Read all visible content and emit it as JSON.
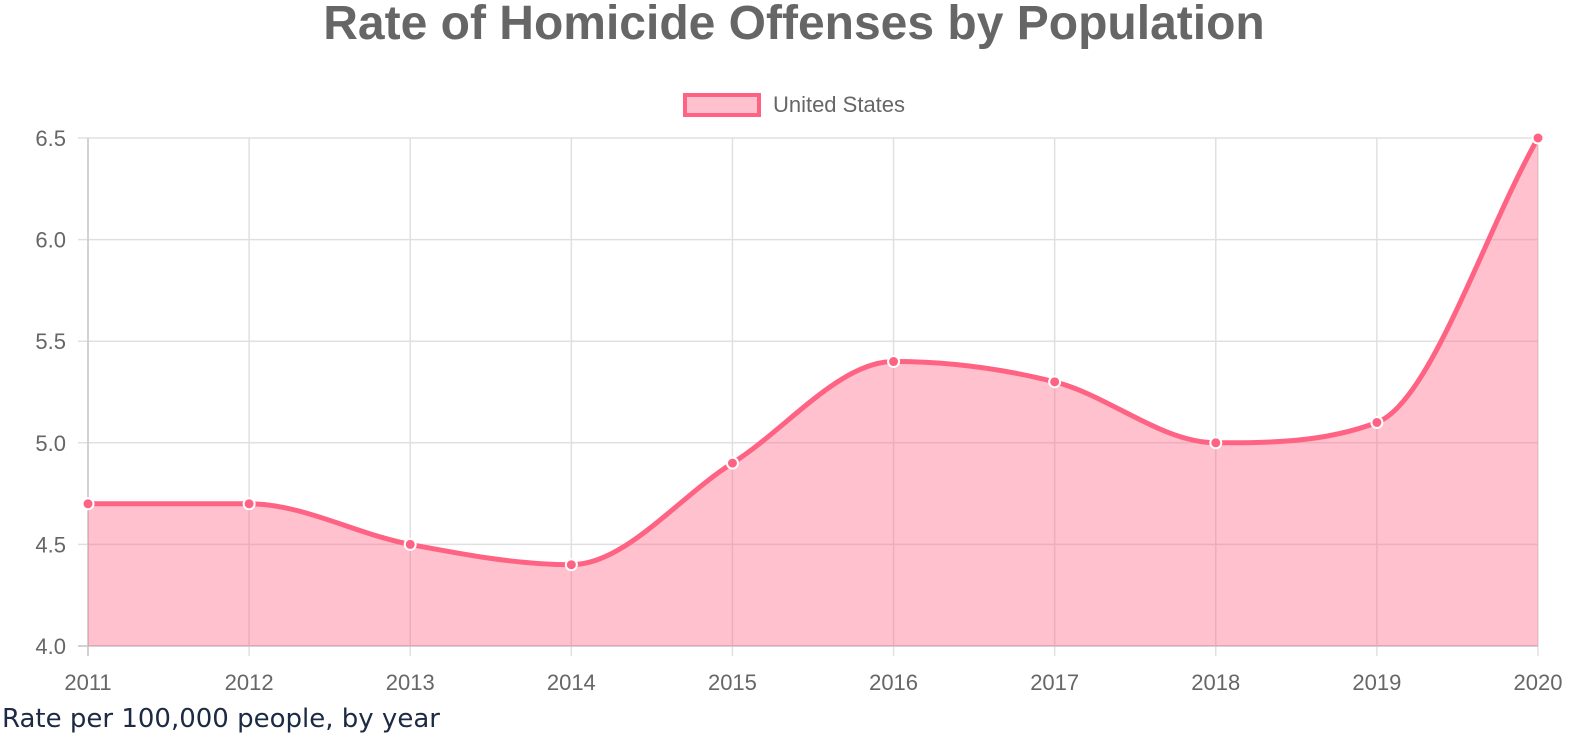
{
  "title": "Rate of Homicide Offenses by Population",
  "caption": "Rate per 100,000 people, by year",
  "colors": {
    "line": "#ff6384",
    "fill": "rgba(255,99,132,0.4)",
    "grid": "#e0e0e0",
    "text": "#666666"
  },
  "chart_data": {
    "type": "area",
    "title": "Rate of Homicide Offenses by Population",
    "x": [
      "2011",
      "2012",
      "2013",
      "2014",
      "2015",
      "2016",
      "2017",
      "2018",
      "2019",
      "2020"
    ],
    "series": [
      {
        "name": "United States",
        "values": [
          4.7,
          4.7,
          4.5,
          4.4,
          4.9,
          5.4,
          5.3,
          5.0,
          5.1,
          6.5
        ]
      }
    ],
    "ylim": [
      4.0,
      6.5
    ],
    "yticks": [
      "4.0",
      "4.5",
      "5.0",
      "5.5",
      "6.0",
      "6.5"
    ],
    "grid": true,
    "legend_position": "top-center"
  }
}
